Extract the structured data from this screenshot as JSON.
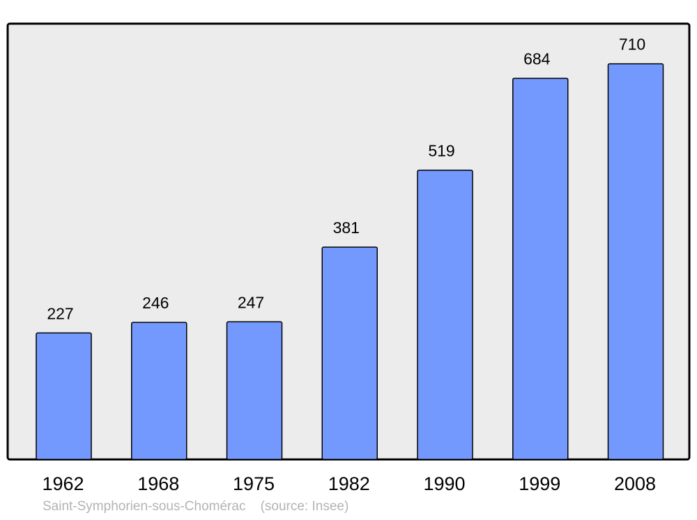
{
  "chart_data": {
    "type": "bar",
    "categories": [
      "1962",
      "1968",
      "1975",
      "1982",
      "1990",
      "1999",
      "2008"
    ],
    "values": [
      227,
      246,
      247,
      381,
      519,
      684,
      710
    ],
    "data_labels": [
      "227",
      "246",
      "247",
      "381",
      "519",
      "684",
      "710"
    ],
    "title": "",
    "xlabel": "",
    "ylabel": "",
    "ylim": [
      0,
      782
    ],
    "grid": false,
    "legend": "none",
    "colors": {
      "bar": "#7399ff",
      "plot_background": "#ececec",
      "frame": "#000000",
      "caption": "#b3b3b3"
    }
  },
  "caption": {
    "place": "Saint-Symphorien-sous-Chomérac",
    "source": "(source: Insee)"
  }
}
